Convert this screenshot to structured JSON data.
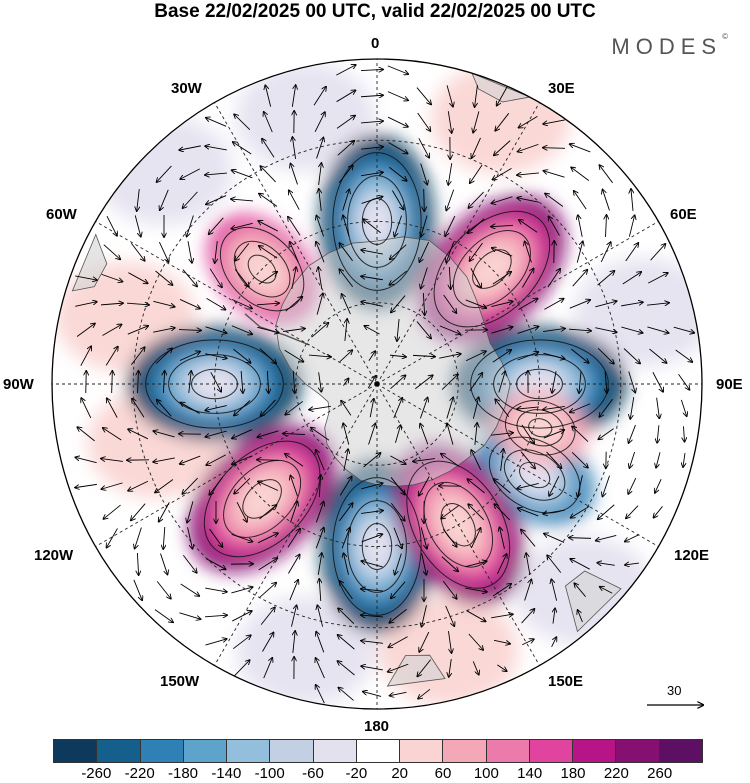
{
  "title": "Base 22/02/2025 00 UTC, valid 22/02/2025 00 UTC",
  "logo": {
    "text": "MODES",
    "mark": "©"
  },
  "longitude_labels": [
    "0",
    "30E",
    "60E",
    "90E",
    "120E",
    "150E",
    "180",
    "150W",
    "120W",
    "90W",
    "60W",
    "30W"
  ],
  "reference_vector": {
    "label": "30"
  },
  "colorbar": {
    "colors": [
      "#0d3a5c",
      "#155f8c",
      "#2f80b5",
      "#5ea3cc",
      "#93bfdc",
      "#c3cfe3",
      "#e4e1ef",
      "#ffffff",
      "#f9d4d2",
      "#f4a8b7",
      "#ec7bac",
      "#e0449f",
      "#b71487",
      "#851072",
      "#5c0f63"
    ],
    "tick_labels": [
      "-260",
      "-220",
      "-180",
      "-140",
      "-100",
      "-60",
      "-20",
      "20",
      "60",
      "100",
      "140",
      "180",
      "220",
      "260"
    ]
  },
  "anomaly_centers": [
    {
      "sign": "negative",
      "level": "strong",
      "near": "0"
    },
    {
      "sign": "negative",
      "level": "strong",
      "near": "90E"
    },
    {
      "sign": "negative",
      "level": "strong",
      "near": "180"
    },
    {
      "sign": "negative",
      "level": "strong",
      "near": "90W"
    },
    {
      "sign": "negative",
      "level": "moderate",
      "near": "120E"
    },
    {
      "sign": "positive",
      "level": "strong",
      "near": "45E"
    },
    {
      "sign": "positive",
      "level": "strong",
      "near": "150E"
    },
    {
      "sign": "positive",
      "level": "strong",
      "near": "135W"
    },
    {
      "sign": "positive",
      "level": "moderate",
      "near": "45W"
    },
    {
      "sign": "positive",
      "level": "weak",
      "near": "105E"
    }
  ]
}
